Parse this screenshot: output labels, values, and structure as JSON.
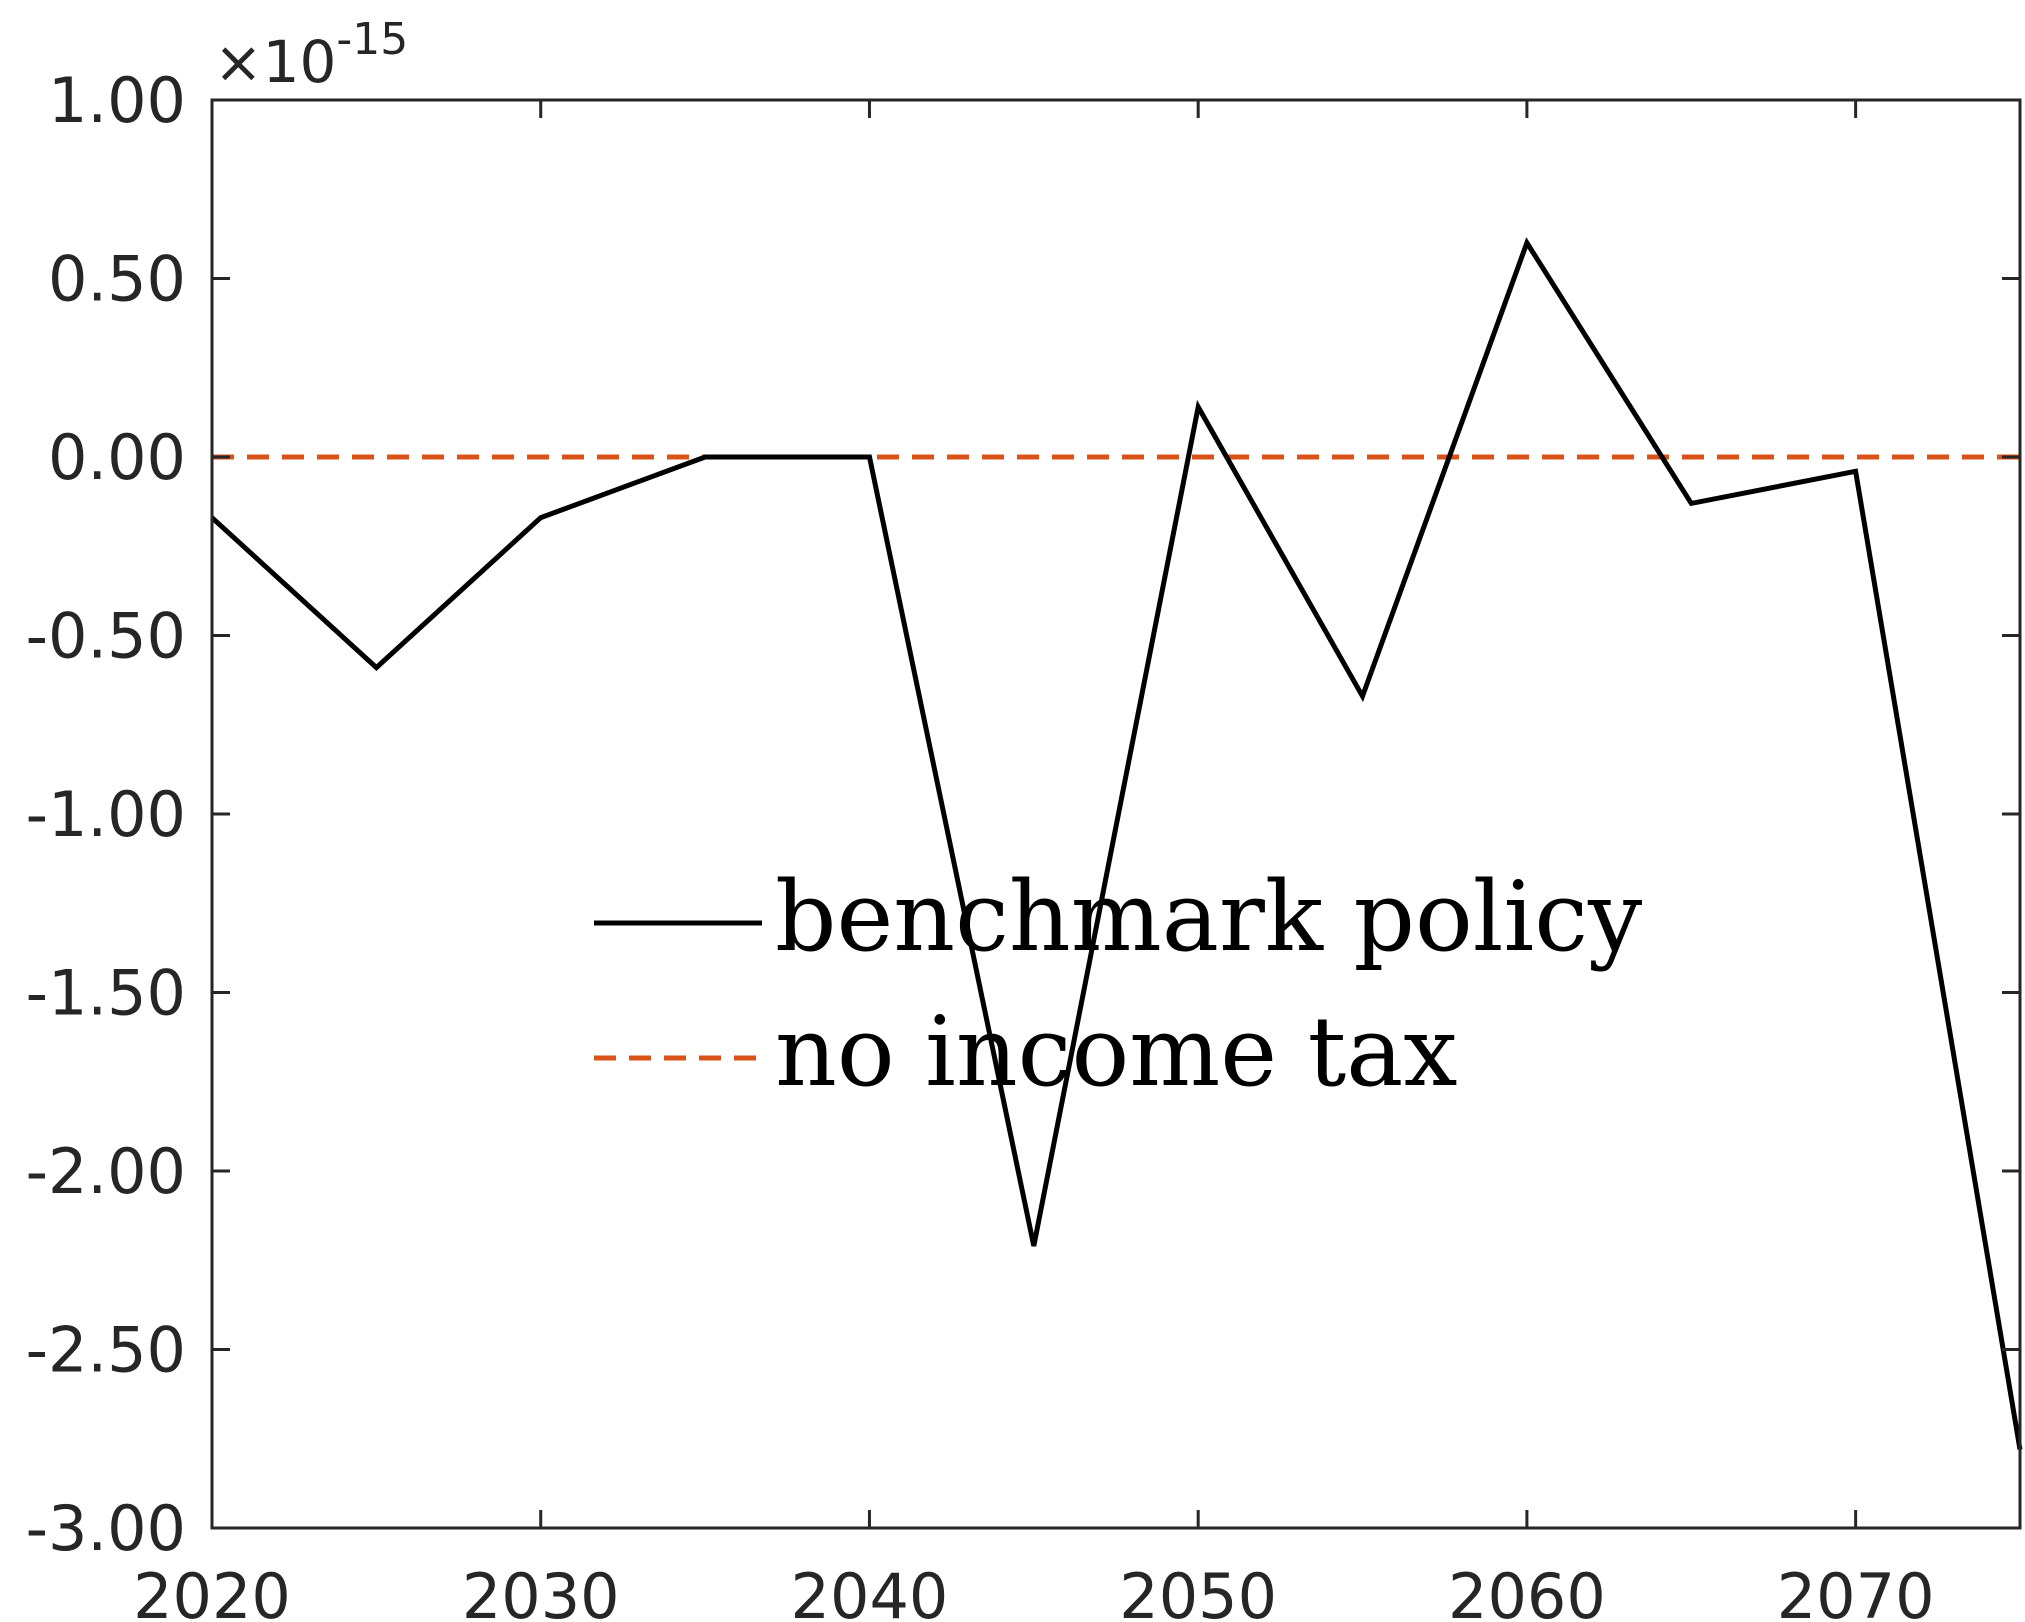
{
  "chart_data": {
    "type": "line",
    "title": "",
    "xlabel": "",
    "ylabel": "",
    "x": [
      2020,
      2025,
      2030,
      2035,
      2040,
      2045,
      2050,
      2055,
      2060,
      2065,
      2070,
      2075
    ],
    "series": [
      {
        "name": "benchmark policy",
        "color": "#000000",
        "style": "solid",
        "values": [
          -0.17,
          -0.59,
          -0.17,
          0.0,
          0.0,
          -2.21,
          0.14,
          -0.67,
          0.6,
          -0.13,
          -0.04,
          -2.78
        ]
      },
      {
        "name": "no income tax",
        "color": "#D95319",
        "style": "dashed",
        "values": [
          0,
          0,
          0,
          0,
          0,
          0,
          0,
          0,
          0,
          0,
          0,
          0
        ]
      }
    ],
    "y_multiplier": "×10",
    "y_exponent": "-15",
    "xlim": [
      2020,
      2075
    ],
    "ylim": [
      -3.0,
      1.0
    ],
    "x_ticks": [
      "2020",
      "2030",
      "2040",
      "2050",
      "2060",
      "2070"
    ],
    "y_ticks": [
      "1.00",
      "0.50",
      "0.00",
      "-0.50",
      "-1.00",
      "-1.50",
      "-2.00",
      "-2.50",
      "-3.00"
    ],
    "grid": false,
    "legend_position": "center"
  }
}
